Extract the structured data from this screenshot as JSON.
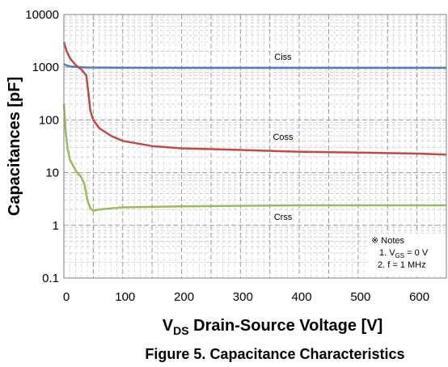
{
  "caption": "Figure 5. Capacitance Characteristics",
  "chart_data": {
    "type": "line",
    "title": "",
    "xlabel_main": "V",
    "xlabel_sub": "DS",
    "xlabel_rest": " Drain-Source Voltage [V]",
    "ylabel": "Capacitances [pF]",
    "xlim": [
      0,
      650
    ],
    "ylim": [
      0.1,
      10000
    ],
    "yscale": "log",
    "grid": true,
    "x_ticks": [
      "0",
      "100",
      "200",
      "300",
      "400",
      "500",
      "600"
    ],
    "y_ticks": [
      "0.1",
      "1",
      "10",
      "100",
      "1000",
      "10000"
    ],
    "series": [
      {
        "name": "Ciss",
        "color": "#4a7ebb",
        "x": [
          0,
          5,
          10,
          20,
          30,
          40,
          60,
          100,
          200,
          300,
          400,
          500,
          600,
          650
        ],
        "y": [
          1150,
          1080,
          1040,
          1010,
          1000,
          990,
          985,
          980,
          975,
          975,
          975,
          975,
          975,
          975
        ]
      },
      {
        "name": "Coss",
        "color": "#be4b48",
        "x": [
          0,
          5,
          10,
          20,
          30,
          38,
          42,
          45,
          50,
          60,
          80,
          100,
          150,
          200,
          300,
          400,
          500,
          600,
          650
        ],
        "y": [
          3000,
          2000,
          1500,
          1100,
          900,
          700,
          300,
          150,
          100,
          70,
          50,
          40,
          32,
          29,
          27,
          25,
          24,
          23,
          22
        ]
      },
      {
        "name": "Crss",
        "color": "#9bbb59",
        "x": [
          0,
          3,
          6,
          10,
          20,
          30,
          35,
          40,
          45,
          50,
          55,
          60,
          80,
          100,
          200,
          300,
          400,
          500,
          600,
          650
        ],
        "y": [
          200,
          60,
          30,
          18,
          11,
          8,
          6,
          3,
          2.1,
          1.9,
          1.95,
          2.0,
          2.1,
          2.2,
          2.3,
          2.35,
          2.4,
          2.4,
          2.4,
          2.4
        ]
      }
    ],
    "notes": {
      "header": "※ Notes",
      "line1_pre": "1. V",
      "line1_sub": "GS",
      "line1_post": " = 0 V",
      "line2": "2. f = 1 MHz"
    }
  }
}
